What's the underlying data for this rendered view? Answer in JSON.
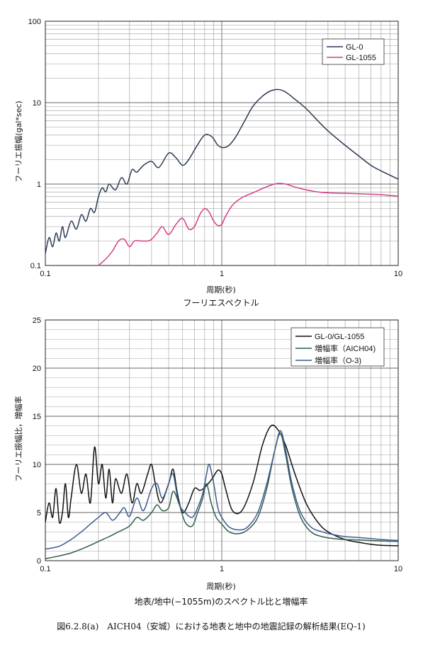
{
  "caption": "図6.2.8(a)　AICH04（安城）における地表と地中の地震記録の解析結果(EQ-1)",
  "chart_data": [
    {
      "type": "line",
      "title": "フーリエスペクトル",
      "xlabel": "周期(秒)",
      "ylabel": "フーリエ振幅(gal*sec)",
      "xscale": "log",
      "yscale": "log",
      "xlim": [
        0.1,
        10
      ],
      "ylim": [
        0.1,
        100
      ],
      "xticks": [
        "0.1",
        "1",
        "10"
      ],
      "yticks": [
        "0.1",
        "1",
        "10",
        "100"
      ],
      "grid": true,
      "legend_position": "top-right",
      "colors": {
        "GL-0": "#2b3a55",
        "GL-1055": "#d63c86"
      },
      "series": [
        {
          "name": "GL-0",
          "x": [
            0.1,
            0.105,
            0.11,
            0.115,
            0.12,
            0.125,
            0.13,
            0.14,
            0.15,
            0.16,
            0.17,
            0.18,
            0.19,
            0.2,
            0.21,
            0.22,
            0.23,
            0.25,
            0.27,
            0.29,
            0.31,
            0.33,
            0.36,
            0.4,
            0.44,
            0.5,
            0.55,
            0.6,
            0.65,
            0.72,
            0.8,
            0.88,
            0.95,
            1.02,
            1.1,
            1.2,
            1.35,
            1.5,
            1.7,
            1.9,
            2.1,
            2.3,
            2.6,
            3.0,
            3.5,
            4.0,
            5.0,
            6.0,
            7.0,
            8.0,
            10.0
          ],
          "y": [
            0.14,
            0.22,
            0.17,
            0.25,
            0.2,
            0.3,
            0.22,
            0.35,
            0.28,
            0.42,
            0.35,
            0.5,
            0.45,
            0.7,
            0.9,
            0.8,
            1.0,
            0.85,
            1.2,
            1.0,
            1.5,
            1.4,
            1.7,
            1.9,
            1.6,
            2.4,
            2.1,
            1.7,
            2.0,
            2.9,
            4.0,
            3.8,
            3.0,
            2.8,
            3.0,
            3.8,
            6.0,
            9.0,
            12.0,
            14.0,
            14.5,
            13.5,
            11.0,
            8.5,
            6.0,
            4.5,
            3.0,
            2.2,
            1.7,
            1.45,
            1.15
          ]
        },
        {
          "name": "GL-1055",
          "x": [
            0.2,
            0.22,
            0.24,
            0.26,
            0.28,
            0.3,
            0.32,
            0.35,
            0.38,
            0.4,
            0.43,
            0.46,
            0.5,
            0.55,
            0.6,
            0.65,
            0.7,
            0.75,
            0.8,
            0.85,
            0.9,
            0.95,
            1.0,
            1.05,
            1.15,
            1.3,
            1.5,
            1.7,
            1.9,
            2.1,
            2.3,
            2.6,
            3.0,
            3.5,
            4.0,
            5.0,
            6.0,
            7.0,
            8.0,
            10.0
          ],
          "y": [
            0.1,
            0.12,
            0.15,
            0.2,
            0.21,
            0.17,
            0.2,
            0.2,
            0.2,
            0.21,
            0.25,
            0.3,
            0.24,
            0.32,
            0.38,
            0.28,
            0.3,
            0.42,
            0.5,
            0.45,
            0.35,
            0.31,
            0.32,
            0.4,
            0.55,
            0.68,
            0.78,
            0.88,
            0.97,
            1.02,
            1.0,
            0.92,
            0.85,
            0.8,
            0.78,
            0.77,
            0.76,
            0.75,
            0.74,
            0.71
          ]
        }
      ]
    },
    {
      "type": "line",
      "title": "地表/地中(−1055m)のスペクトル比と増幅率",
      "xlabel": "周期(秒)",
      "ylabel": "フーリエ振幅比，増幅率",
      "xscale": "log",
      "yscale": "linear",
      "xlim": [
        0.1,
        10
      ],
      "ylim": [
        0,
        25
      ],
      "xticks": [
        "0.1",
        "1",
        "10"
      ],
      "yticks": [
        "0",
        "5",
        "10",
        "15",
        "20",
        "25"
      ],
      "grid": true,
      "legend_position": "top-right",
      "colors": {
        "GL-0/GL-1055": "#111111",
        "増幅率（AICH04)": "#2e5e4a",
        "増幅率（O-3)": "#3c5a8c"
      },
      "series": [
        {
          "name": "GL-0/GL-1055",
          "x": [
            0.1,
            0.105,
            0.11,
            0.115,
            0.12,
            0.125,
            0.13,
            0.135,
            0.14,
            0.15,
            0.16,
            0.17,
            0.18,
            0.19,
            0.2,
            0.21,
            0.22,
            0.23,
            0.24,
            0.25,
            0.27,
            0.29,
            0.31,
            0.33,
            0.35,
            0.38,
            0.4,
            0.42,
            0.45,
            0.5,
            0.53,
            0.56,
            0.6,
            0.65,
            0.7,
            0.75,
            0.8,
            0.88,
            0.95,
            1.0,
            1.05,
            1.15,
            1.3,
            1.5,
            1.7,
            1.9,
            2.1,
            2.3,
            2.6,
            3.0,
            3.5,
            4.0,
            5.0,
            6.0,
            7.0,
            8.0,
            10.0
          ],
          "y": [
            4.0,
            6.0,
            4.5,
            7.5,
            4.0,
            5.0,
            8.0,
            4.5,
            6.5,
            10.0,
            7.0,
            9.0,
            6.0,
            11.8,
            8.0,
            10.0,
            6.5,
            9.5,
            6.0,
            8.5,
            7.0,
            9.0,
            6.0,
            8.0,
            7.0,
            9.0,
            10.0,
            8.0,
            6.0,
            8.0,
            9.5,
            7.0,
            5.0,
            6.0,
            7.5,
            7.3,
            7.6,
            8.5,
            9.4,
            9.0,
            7.5,
            5.2,
            5.2,
            8.0,
            12.0,
            14.0,
            13.5,
            12.0,
            9.0,
            6.0,
            4.0,
            3.0,
            2.2,
            1.9,
            1.7,
            1.6,
            1.55
          ]
        },
        {
          "name": "増幅率（AICH04)",
          "x": [
            0.1,
            0.12,
            0.14,
            0.16,
            0.18,
            0.2,
            0.23,
            0.26,
            0.3,
            0.33,
            0.36,
            0.4,
            0.43,
            0.46,
            0.5,
            0.53,
            0.57,
            0.62,
            0.68,
            0.73,
            0.78,
            0.82,
            0.87,
            0.93,
            1.0,
            1.1,
            1.25,
            1.4,
            1.6,
            1.8,
            2.0,
            2.15,
            2.3,
            2.5,
            2.8,
            3.2,
            3.7,
            4.3,
            5.0,
            6.0,
            7.0,
            8.0,
            10.0
          ],
          "y": [
            0.2,
            0.5,
            0.8,
            1.2,
            1.6,
            2.0,
            2.5,
            3.0,
            3.6,
            4.5,
            4.2,
            5.0,
            5.8,
            5.2,
            5.5,
            7.2,
            6.0,
            4.0,
            3.6,
            5.0,
            6.5,
            8.0,
            6.0,
            4.5,
            3.8,
            3.0,
            2.8,
            3.2,
            4.5,
            7.5,
            11.5,
            13.2,
            11.0,
            7.5,
            4.5,
            3.0,
            2.5,
            2.3,
            2.2,
            2.15,
            2.1,
            2.05,
            2.0
          ]
        },
        {
          "name": "増幅率（O-3)",
          "x": [
            0.1,
            0.12,
            0.14,
            0.16,
            0.18,
            0.2,
            0.22,
            0.24,
            0.26,
            0.28,
            0.3,
            0.33,
            0.36,
            0.4,
            0.43,
            0.46,
            0.5,
            0.53,
            0.57,
            0.62,
            0.68,
            0.73,
            0.78,
            0.82,
            0.85,
            0.9,
            0.95,
            1.0,
            1.1,
            1.25,
            1.4,
            1.6,
            1.8,
            2.0,
            2.15,
            2.3,
            2.5,
            2.8,
            3.2,
            3.7,
            4.3,
            5.0,
            6.0,
            7.0,
            8.0,
            10.0
          ],
          "y": [
            1.2,
            1.5,
            2.2,
            3.0,
            3.8,
            4.5,
            5.0,
            4.2,
            4.8,
            5.5,
            4.6,
            6.5,
            5.2,
            7.5,
            8.0,
            6.5,
            8.0,
            9.0,
            6.0,
            5.0,
            4.5,
            5.5,
            7.0,
            9.0,
            10.0,
            8.0,
            5.5,
            4.5,
            3.5,
            3.2,
            3.5,
            5.0,
            8.0,
            11.5,
            13.5,
            11.5,
            8.0,
            5.0,
            3.5,
            3.0,
            2.7,
            2.5,
            2.4,
            2.3,
            2.2,
            2.1
          ]
        }
      ]
    }
  ]
}
